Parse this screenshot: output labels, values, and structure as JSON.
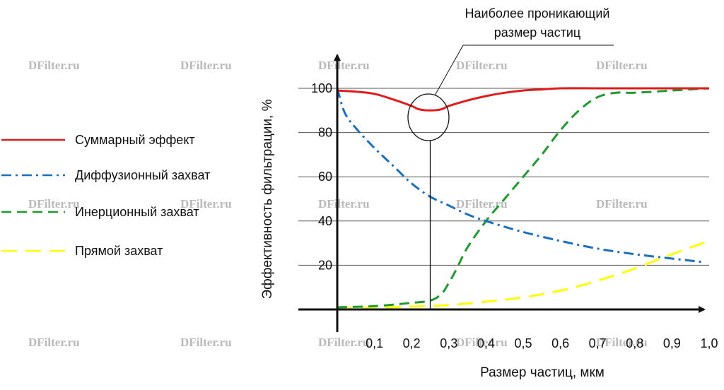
{
  "watermark": "DFilter.ru",
  "chart_data": {
    "type": "line",
    "xlabel": "Размер частиц, мкм",
    "ylabel": "Эффективность фильтрации, %",
    "xlim": [
      0,
      1.0
    ],
    "ylim": [
      0,
      100
    ],
    "x_ticks": [
      "0,1",
      "0,2",
      "0,3",
      "0,4",
      "0,5",
      "0,6",
      "0,7",
      "0,8",
      "0,9",
      "1,0"
    ],
    "y_ticks": [
      "20",
      "40",
      "60",
      "80",
      "100"
    ],
    "grid": "horizontal",
    "legend_position": "left",
    "annotation": {
      "line1": "Наиболее проникающий",
      "line2": "размер частиц",
      "x": 0.25
    },
    "series": [
      {
        "name": "Суммарный эффект",
        "color": "#e31b1b",
        "style": "solid",
        "x": [
          0.0,
          0.05,
          0.1,
          0.15,
          0.2,
          0.22,
          0.25,
          0.28,
          0.3,
          0.35,
          0.4,
          0.45,
          0.5,
          0.55,
          0.6,
          0.7,
          0.8,
          0.9,
          1.0
        ],
        "y": [
          99,
          98.5,
          97.5,
          95,
          92,
          90.5,
          90,
          90.5,
          92,
          94.5,
          96.5,
          98,
          99,
          99.5,
          100,
          100,
          100,
          100,
          100
        ]
      },
      {
        "name": "Диффузионный захват",
        "color": "#1b6fbf",
        "style": "dashdot",
        "x": [
          0.0,
          0.02,
          0.05,
          0.1,
          0.15,
          0.2,
          0.25,
          0.3,
          0.35,
          0.4,
          0.5,
          0.6,
          0.7,
          0.8,
          0.9,
          0.98
        ],
        "y": [
          100,
          89,
          82,
          73,
          65,
          57,
          51,
          47,
          43,
          40,
          35,
          31,
          27.5,
          25,
          23,
          21.5
        ]
      },
      {
        "name": "Инерционный захват",
        "color": "#1f9a2e",
        "style": "dashed",
        "x": [
          0.0,
          0.1,
          0.2,
          0.25,
          0.28,
          0.3,
          0.32,
          0.35,
          0.4,
          0.45,
          0.5,
          0.55,
          0.6,
          0.65,
          0.7,
          0.75,
          0.8,
          0.9,
          1.0
        ],
        "y": [
          1,
          1.5,
          3,
          4,
          7,
          12,
          18,
          28,
          40,
          50,
          60,
          70,
          81,
          90,
          96,
          98,
          98,
          99,
          100
        ]
      },
      {
        "name": "Прямой захват",
        "color": "#ffff00",
        "style": "longdash",
        "x": [
          0.0,
          0.1,
          0.2,
          0.3,
          0.4,
          0.5,
          0.6,
          0.7,
          0.8,
          0.9,
          1.0
        ],
        "y": [
          0.5,
          0.8,
          1.3,
          2,
          3.5,
          5.5,
          8.5,
          13,
          18.5,
          25,
          31
        ]
      }
    ]
  }
}
